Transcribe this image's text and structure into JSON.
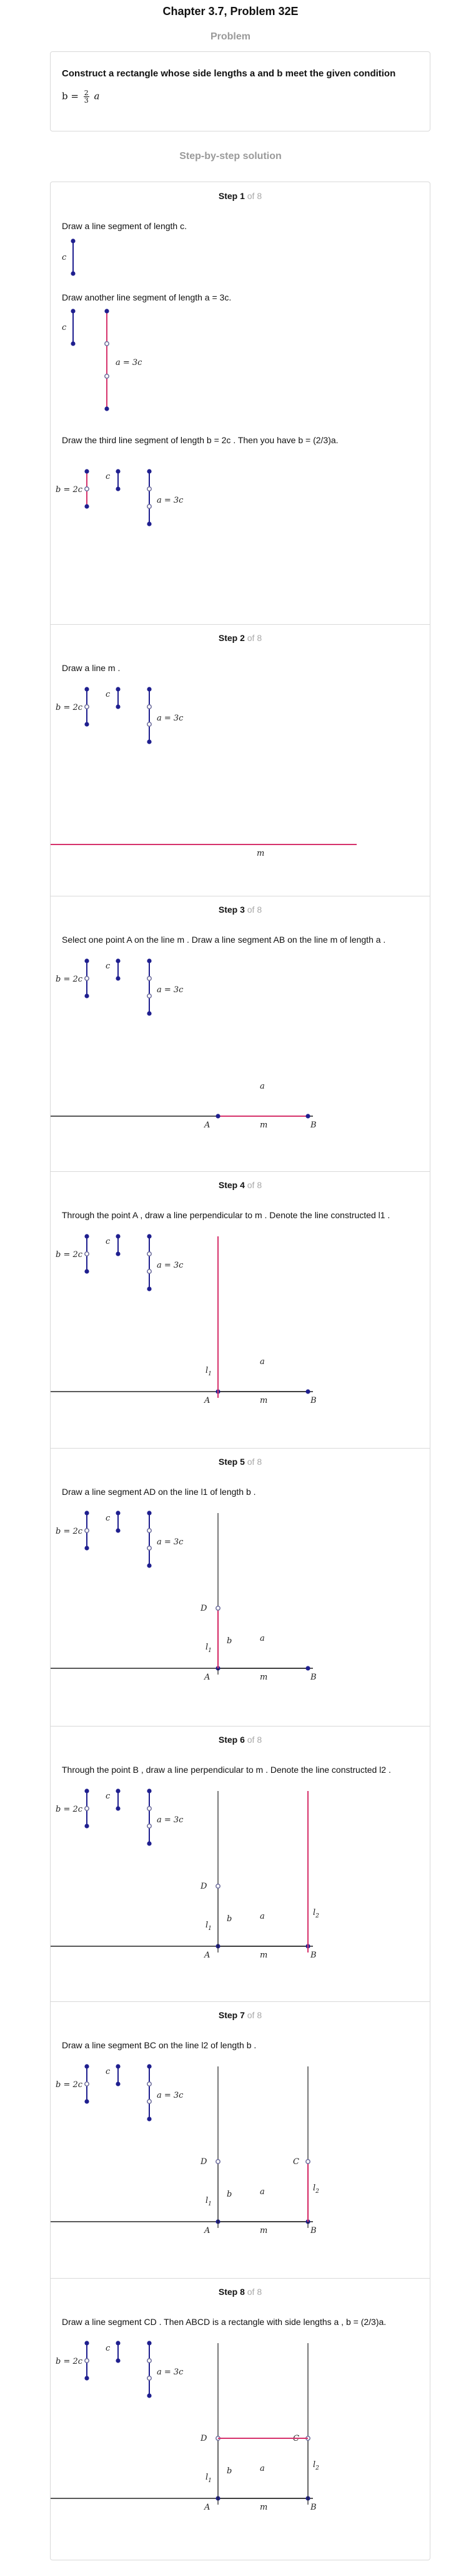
{
  "header": {
    "title": "Chapter 3.7, Problem 32E"
  },
  "problem": {
    "heading": "Problem",
    "statement": "Construct a rectangle whose side lengths a and b meet the given condition",
    "formula_lhs": "b =",
    "formula_num": "2",
    "formula_den": "3",
    "formula_var": "a"
  },
  "solution": {
    "heading": "Step-by-step solution"
  },
  "labels": {
    "c": "c",
    "a_3c": "a = 3c",
    "b_2c": "b = 2c",
    "m": "m",
    "a": "a",
    "b": "b",
    "A": "A",
    "B": "B",
    "C": "C",
    "D": "D",
    "l1": "l",
    "l2": "l",
    "sub1": "1",
    "sub2": "2"
  },
  "steps": [
    {
      "label": "Step 1",
      "of": "of 8",
      "instructions": [
        "Draw a line segment of length c.",
        "Draw another line segment of length  a = 3c.",
        "Draw the third line segment of length  b = 2c . Then you have  b = (2/3)a."
      ]
    },
    {
      "label": "Step 2",
      "of": "of 8",
      "instructions": [
        "Draw a line  m ."
      ]
    },
    {
      "label": "Step 3",
      "of": "of 8",
      "instructions": [
        "Select one point  A on the line m . Draw a line segment  AB  on the line  m of length  a ."
      ]
    },
    {
      "label": "Step 4",
      "of": "of 8",
      "instructions": [
        "Through the point  A , draw a line perpendicular to  m . Denote the line constructed  l1 ."
      ]
    },
    {
      "label": "Step 5",
      "of": "of 8",
      "instructions": [
        "Draw a line segment  AD  on the line  l1  of length  b ."
      ]
    },
    {
      "label": "Step 6",
      "of": "of 8",
      "instructions": [
        "Through the point  B , draw a line perpendicular to  m . Denote the line constructed  l2 ."
      ]
    },
    {
      "label": "Step 7",
      "of": "of 8",
      "instructions": [
        "Draw a line segment  BC  on the line  l2  of length  b ."
      ]
    },
    {
      "label": "Step 8",
      "of": "of 8",
      "instructions": [
        "Draw a line segment  CD . Then  ABCD  is a rectangle with side lengths  a ,  b = (2/3)a."
      ]
    }
  ],
  "colors": {
    "accent": "#d6336c",
    "point": "#1f1f8f",
    "line": "#222222",
    "border": "#d9d9d9"
  }
}
